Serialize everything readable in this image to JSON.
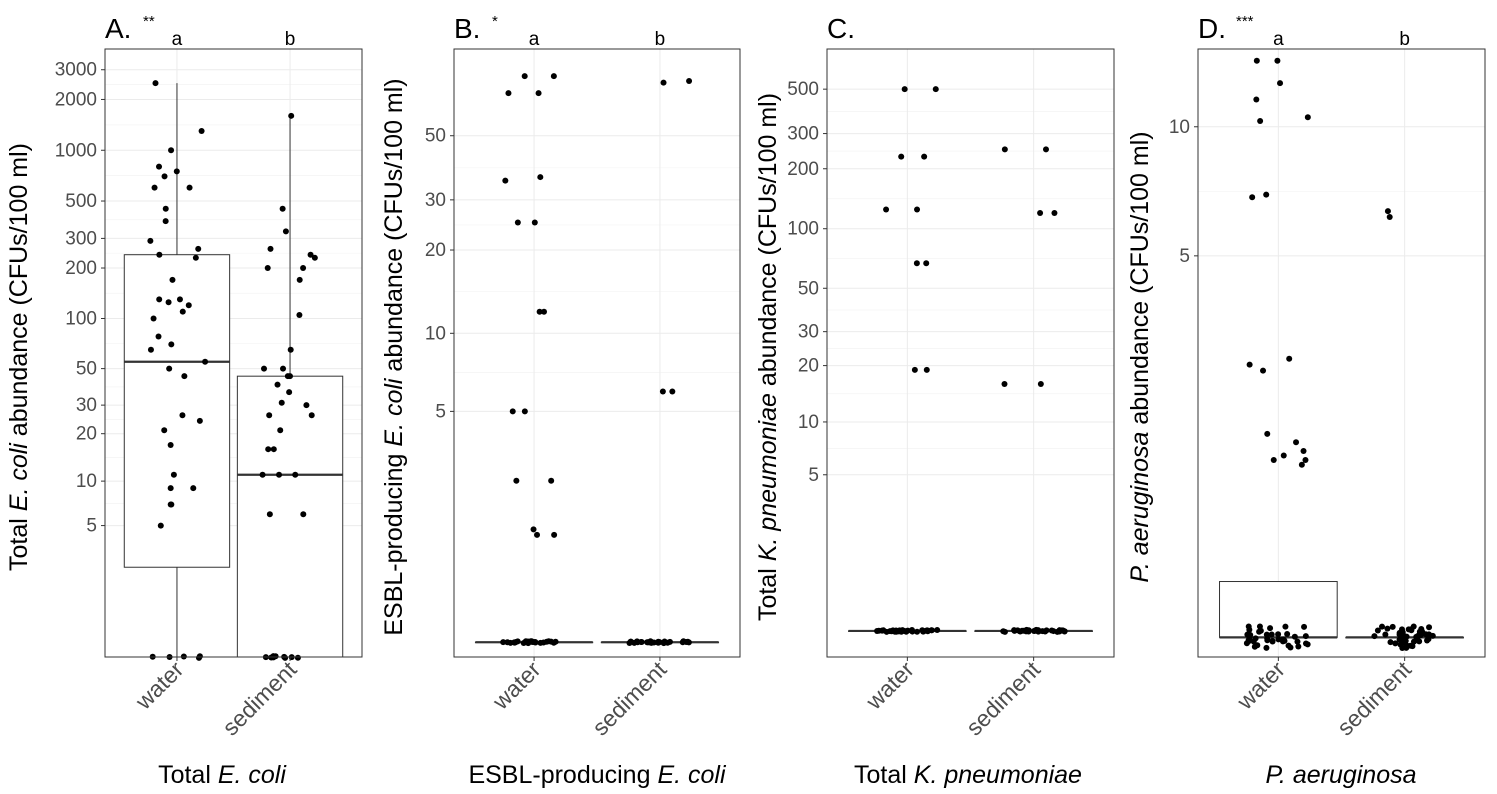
{
  "chart_data": [
    {
      "type": "box",
      "panel_tag": "A.",
      "significance": "**",
      "scale": "log10(x+1)",
      "ylabel": "Total E. coli abundance (CFUs/100 ml)",
      "ylabel_parts": [
        {
          "t": "Total ",
          "i": false
        },
        {
          "t": "E. coli",
          "i": true
        },
        {
          "t": " abundance (CFUs/100 ml)",
          "i": false
        }
      ],
      "xlabel": "Total E. coli",
      "xlabel_parts": [
        {
          "t": "Total ",
          "i": false
        },
        {
          "t": "E. coli",
          "i": true
        }
      ],
      "ylim": [
        0,
        3.6
      ],
      "y_ticks": [
        5,
        10,
        20,
        30,
        50,
        100,
        200,
        300,
        500,
        1000,
        2000,
        3000
      ],
      "y_tick_labels": [
        "5",
        "10",
        "20",
        "30",
        "50",
        "100",
        "200",
        "300",
        "500",
        "1000",
        "2000",
        "3000"
      ],
      "categories": [
        "water",
        "sediment"
      ],
      "letters": [
        "a",
        "b"
      ],
      "boxes": [
        {
          "q1": 2.4,
          "median": 55,
          "q3": 240,
          "whisker_low": 0,
          "whisker_high": 2500
        },
        {
          "q1": 0,
          "median": 11,
          "q3": 45,
          "whisker_low": 0,
          "whisker_high": 1600
        }
      ],
      "points": [
        [
          0,
          0,
          0,
          0,
          0,
          2500,
          1300,
          1000,
          800,
          750,
          700,
          600,
          600,
          450,
          380,
          290,
          260,
          240,
          230,
          170,
          130,
          130,
          125,
          120,
          110,
          100,
          78,
          70,
          65,
          55,
          50,
          45,
          26,
          24,
          21,
          17,
          11,
          9,
          9,
          7,
          7,
          5
        ],
        [
          0,
          0,
          0,
          0,
          0,
          0,
          0,
          0,
          0,
          1600,
          450,
          330,
          260,
          240,
          230,
          200,
          200,
          170,
          105,
          65,
          50,
          50,
          45,
          45,
          40,
          36,
          31,
          30,
          26,
          26,
          21,
          16,
          16,
          11,
          11,
          11,
          6,
          6
        ]
      ]
    },
    {
      "type": "box",
      "panel_tag": "B.",
      "significance": "*",
      "scale": "log10(x+1)",
      "ylabel": "ESBL-producing E. coli abundance (CFUs/100 ml)",
      "ylabel_parts": [
        {
          "t": "ESBL-producing ",
          "i": false
        },
        {
          "t": "E. coli",
          "i": true
        },
        {
          "t": " abundance (CFUs/100 ml)",
          "i": false
        }
      ],
      "xlabel": "ESBL-producing E. coli",
      "xlabel_parts": [
        {
          "t": "ESBL-producing ",
          "i": false
        },
        {
          "t": "E. coli",
          "i": true
        }
      ],
      "ylim": [
        -0.05,
        2.0
      ],
      "y_ticks": [
        5,
        10,
        20,
        30,
        50
      ],
      "y_tick_labels": [
        "5",
        "10",
        "20",
        "30",
        "50"
      ],
      "categories": [
        "water",
        "sediment"
      ],
      "letters": [
        "a",
        "b"
      ],
      "boxes": [
        {
          "q1": 0,
          "median": 0,
          "q3": 0,
          "whisker_low": 0,
          "whisker_high": 0
        },
        {
          "q1": 0,
          "median": 0,
          "q3": 0,
          "whisker_low": 0,
          "whisker_high": 0
        }
      ],
      "points": [
        [
          0,
          0,
          0,
          0,
          0,
          0,
          0,
          0,
          0,
          0,
          0,
          0,
          0,
          0,
          0,
          0,
          0,
          0,
          0,
          0,
          0,
          0,
          0,
          0,
          0,
          80,
          80,
          70,
          70,
          36,
          35,
          25,
          25,
          12,
          12,
          5,
          5,
          2.5,
          2.5,
          1.3,
          1.3,
          1.4
        ],
        [
          0,
          0,
          0,
          0,
          0,
          0,
          0,
          0,
          0,
          0,
          0,
          0,
          0,
          0,
          0,
          0,
          0,
          0,
          0,
          0,
          0,
          0,
          0,
          0,
          0,
          0,
          77,
          76,
          6,
          6
        ]
      ]
    },
    {
      "type": "box",
      "panel_tag": "C.",
      "significance": "",
      "scale": "log10(x+1)",
      "ylabel": "Total K. pneumoniae abundance (CFUs/100 ml)",
      "ylabel_parts": [
        {
          "t": "Total ",
          "i": false
        },
        {
          "t": "K. pneumoniae",
          "i": true
        },
        {
          "t": " abundance (CFUs/100 ml)",
          "i": false
        }
      ],
      "xlabel": "Total K. pneumoniae",
      "xlabel_parts": [
        {
          "t": "Total ",
          "i": false
        },
        {
          "t": "K. pneumoniae",
          "i": true
        }
      ],
      "ylim": [
        -0.13,
        2.9
      ],
      "y_ticks": [
        5,
        10,
        20,
        30,
        50,
        100,
        200,
        300,
        500
      ],
      "y_tick_labels": [
        "5",
        "10",
        "20",
        "30",
        "50",
        "100",
        "200",
        "300",
        "500"
      ],
      "categories": [
        "water",
        "sediment"
      ],
      "letters": [
        "",
        ""
      ],
      "boxes": [
        {
          "q1": 0,
          "median": 0,
          "q3": 0,
          "whisker_low": 0,
          "whisker_high": 0
        },
        {
          "q1": 0,
          "median": 0,
          "q3": 0,
          "whisker_low": 0,
          "whisker_high": 0
        }
      ],
      "points": [
        [
          0,
          0,
          0,
          0,
          0,
          0,
          0,
          0,
          0,
          0,
          0,
          0,
          0,
          0,
          0,
          0,
          0,
          0,
          0,
          0,
          0,
          0,
          0,
          0,
          0,
          0,
          0,
          0,
          0,
          0,
          0,
          0,
          500,
          500,
          230,
          230,
          125,
          125,
          67,
          67,
          19,
          19
        ],
        [
          0,
          0,
          0,
          0,
          0,
          0,
          0,
          0,
          0,
          0,
          0,
          0,
          0,
          0,
          0,
          0,
          0,
          0,
          0,
          0,
          0,
          0,
          0,
          0,
          0,
          0,
          0,
          0,
          0,
          0,
          0,
          0,
          250,
          250,
          120,
          120,
          16,
          16
        ]
      ]
    },
    {
      "type": "box",
      "panel_tag": "D.",
      "significance": "***",
      "scale": "log10(x+1)",
      "ylabel": "P. aeruginosa abundance (CFUs/100 ml)",
      "ylabel_parts": [
        {
          "t": "P. aeruginosa",
          "i": true
        },
        {
          "t": " abundance (CFUs/100 ml)",
          "i": false
        }
      ],
      "xlabel": "P. aeruginosa",
      "xlabel_parts": [
        {
          "t": "P. aeruginosa",
          "i": true
        }
      ],
      "ylim": [
        -0.04,
        1.2
      ],
      "y_ticks": [
        5,
        10
      ],
      "y_tick_labels": [
        "5",
        "10"
      ],
      "categories": [
        "water",
        "sediment"
      ],
      "letters": [
        "a",
        "b"
      ],
      "boxes": [
        {
          "q1": 0,
          "median": 0,
          "q3": 0.3,
          "whisker_low": 0,
          "whisker_high": 0.3
        },
        {
          "q1": 0,
          "median": 0,
          "q3": 0,
          "whisker_low": 0,
          "whisker_high": 0
        }
      ],
      "points": [
        [
          0,
          0,
          0,
          0,
          0,
          0,
          0,
          0,
          0,
          0,
          0,
          0,
          0,
          0,
          0,
          0,
          0,
          0,
          0,
          0,
          0,
          0,
          0,
          0,
          0,
          0,
          0,
          0,
          0,
          0,
          0,
          0,
          0,
          0,
          0,
          0,
          0,
          0,
          0,
          0,
          14,
          14,
          12.5,
          11.5,
          10.5,
          10.3,
          7,
          6.9,
          2.7,
          2.6,
          2.5,
          1.6,
          1.5,
          1.4,
          1.35,
          1.3,
          1.3,
          1.25
        ],
        [
          0,
          0,
          0,
          0,
          0,
          0,
          0,
          0,
          0,
          0,
          0,
          0,
          0,
          0,
          0,
          0,
          0,
          0,
          0,
          0,
          0,
          0,
          0,
          0,
          0,
          0,
          0,
          0,
          0,
          0,
          0,
          0,
          0,
          0,
          0,
          0,
          0,
          0,
          0,
          0,
          0,
          0,
          0,
          0,
          0,
          6.4,
          6.2
        ]
      ]
    }
  ]
}
